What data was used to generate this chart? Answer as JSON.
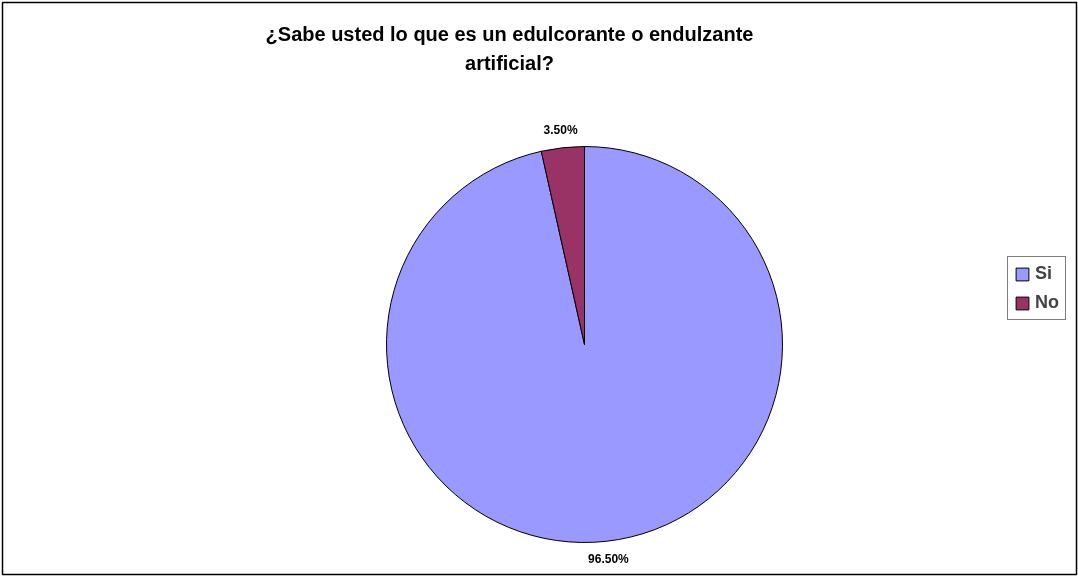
{
  "chart_data": {
    "type": "pie",
    "title": "¿Sabe usted lo que es un edulcorante o endulzante artificial?",
    "categories": [
      "Si",
      "No"
    ],
    "values": [
      96.5,
      3.5
    ],
    "colors": [
      "#9999ff",
      "#993366"
    ],
    "value_labels": [
      "96.50%",
      "3.50%"
    ],
    "legend": "right"
  }
}
